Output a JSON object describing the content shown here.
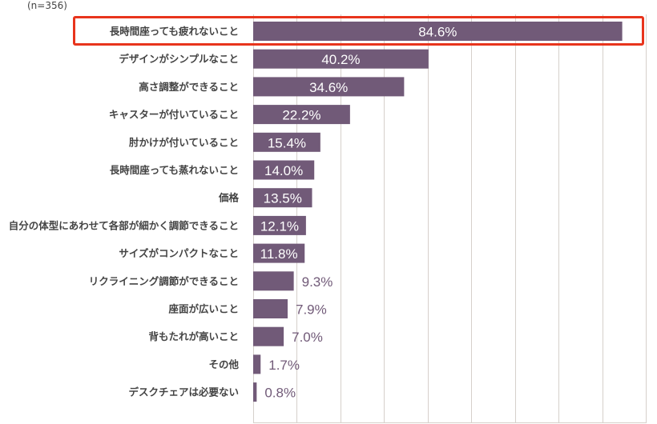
{
  "chart_data": {
    "type": "bar",
    "orientation": "horizontal",
    "note": "(n=356)",
    "categories": [
      "長時間座っても疲れないこと",
      "デザインがシンプルなこと",
      "高さ調整ができること",
      "キャスターが付いていること",
      "肘かけが付いていること",
      "長時間座っても蒸れないこと",
      "価格",
      "自分の体型にあわせて各部が細かく調節できること",
      "サイズがコンパクトなこと",
      "リクライニング調節ができること",
      "座面が広いこと",
      "背もたれが高いこと",
      "その他",
      "デスクチェアは必要ない"
    ],
    "values": [
      84.6,
      40.2,
      34.6,
      22.2,
      15.4,
      14.0,
      13.5,
      12.1,
      11.8,
      9.3,
      7.9,
      7.0,
      1.7,
      0.8
    ],
    "value_labels": [
      "84.6%",
      "40.2%",
      "34.6%",
      "22.2%",
      "15.4%",
      "14.0%",
      "13.5%",
      "12.1%",
      "11.8%",
      "9.3%",
      "7.9%",
      "7.0%",
      "1.7%",
      "0.8%"
    ],
    "xlim": [
      0,
      90
    ],
    "grid_step": 10,
    "grid": true,
    "highlighted_index": 0,
    "bar_color": "#715a78",
    "highlight_color": "#e8341c",
    "grid_color": "#d6d0cb"
  }
}
